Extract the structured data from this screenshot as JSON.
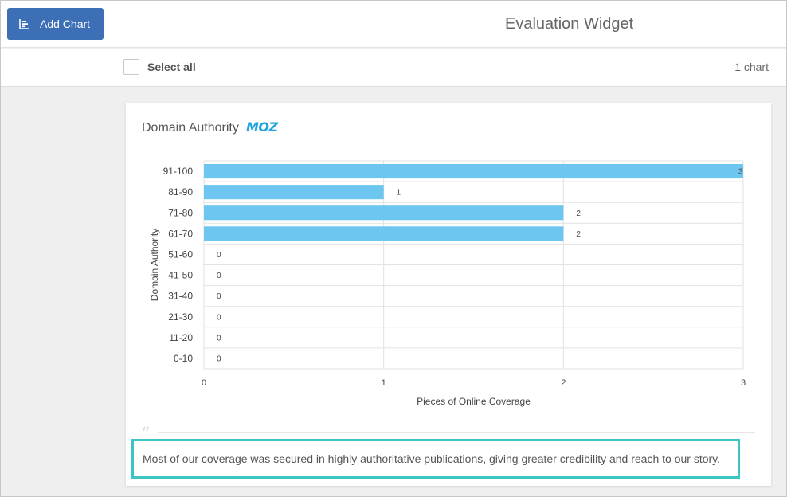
{
  "header": {
    "add_chart_label": "Add Chart",
    "title": "Evaluation Widget"
  },
  "selection": {
    "select_all_label": "Select all",
    "chart_count": "1 chart"
  },
  "card": {
    "title": "Domain Authority",
    "logo_text": "MOZ",
    "logo_color": "#1fa4dd",
    "note": "Most of our coverage was secured in highly authoritative publications, giving greater credibility and reach to our story."
  },
  "colors": {
    "accent": "#3d6fb6",
    "bar": "#6cc6ef",
    "highlight": "#3dc4c4"
  },
  "chart_data": {
    "type": "bar",
    "orientation": "horizontal",
    "categories": [
      "91-100",
      "81-90",
      "71-80",
      "61-70",
      "51-60",
      "41-50",
      "31-40",
      "21-30",
      "11-20",
      "0-10"
    ],
    "values": [
      3,
      1,
      2,
      2,
      0,
      0,
      0,
      0,
      0,
      0
    ],
    "xlabel": "Pieces of Online Coverage",
    "ylabel": "Domain Authority",
    "xlim": [
      0,
      3
    ],
    "xticks": [
      0,
      1,
      2,
      3
    ],
    "grid": true
  }
}
